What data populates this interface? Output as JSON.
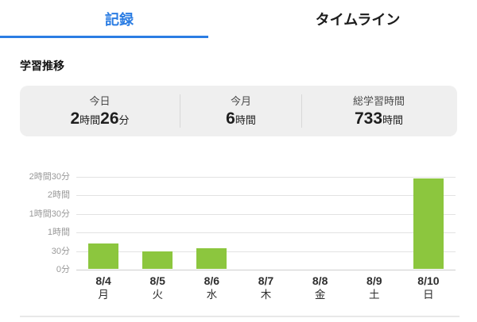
{
  "colors": {
    "accent_blue": "#2B7DE3",
    "bar_green": "#8CC63E",
    "panel_bg": "#EFEFEF"
  },
  "tabs": [
    {
      "label": "記録",
      "active": true
    },
    {
      "label": "タイムライン",
      "active": false
    }
  ],
  "section": {
    "title": "学習推移"
  },
  "stats": {
    "items": [
      {
        "label": "今日",
        "parts": [
          {
            "text": "2",
            "big": true
          },
          {
            "text": "時間",
            "big": false
          },
          {
            "text": "26",
            "big": true
          },
          {
            "text": "分",
            "big": false
          }
        ]
      },
      {
        "label": "今月",
        "parts": [
          {
            "text": "6",
            "big": true
          },
          {
            "text": "時間",
            "big": false
          }
        ]
      },
      {
        "label": "総学習時間",
        "parts": [
          {
            "text": "733",
            "big": true
          },
          {
            "text": "時間",
            "big": false
          }
        ]
      }
    ]
  },
  "chart_data": {
    "type": "bar",
    "title": "学習推移",
    "categories": [
      "8/4",
      "8/5",
      "8/6",
      "8/7",
      "8/8",
      "8/9",
      "8/10"
    ],
    "weekday_labels": [
      "月",
      "火",
      "水",
      "木",
      "金",
      "土",
      "日"
    ],
    "values_minutes": [
      41,
      28,
      33,
      0,
      0,
      0,
      146
    ],
    "unit": "分",
    "ylim": [
      0,
      150
    ],
    "yticks": [
      {
        "value": 0,
        "label": "0分"
      },
      {
        "value": 30,
        "label": "30分"
      },
      {
        "value": 60,
        "label": "1時間"
      },
      {
        "value": 90,
        "label": "1時間30分"
      },
      {
        "value": 120,
        "label": "2時間"
      },
      {
        "value": 150,
        "label": "2時間30分"
      }
    ],
    "grid": true,
    "legend_position": "none",
    "bar_color": "#8CC63E"
  }
}
